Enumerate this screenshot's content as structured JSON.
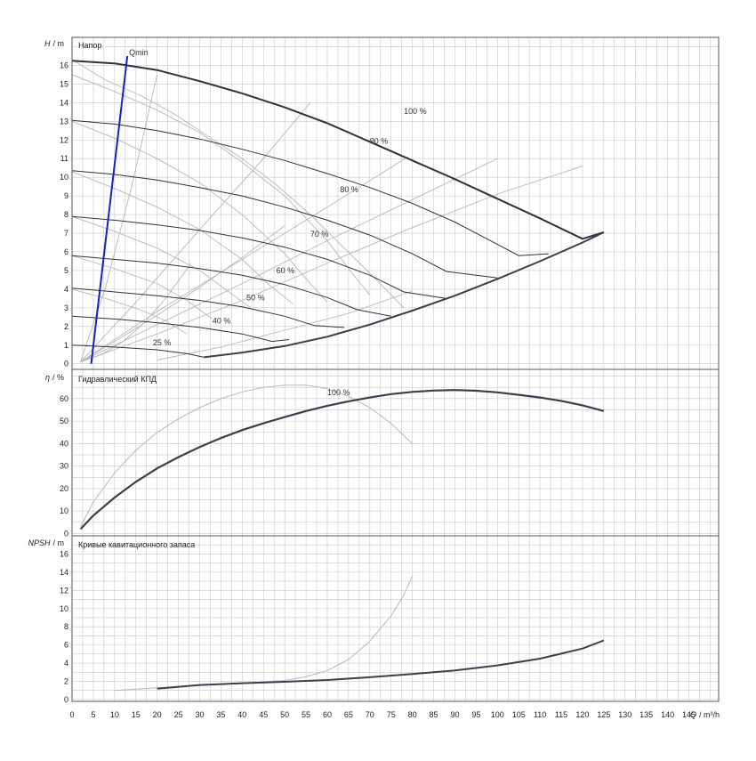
{
  "colors": {
    "grid": "#c8c8c8",
    "frame": "#555555",
    "main_curve": "#3a3f4e",
    "speed_curve": "#2e3240",
    "light_curve": "#b8b8b8",
    "qmin_line": "#1022c8"
  },
  "chart_data": [
    {
      "type": "line",
      "panel": "head",
      "title": "Напор",
      "ylabel_italic": "H",
      "ylabel_unit": "/ m",
      "xlim": [
        0,
        152
      ],
      "ylim": [
        -0.3,
        17.5
      ],
      "yticks": [
        0,
        1,
        2,
        3,
        4,
        5,
        6,
        7,
        8,
        9,
        10,
        11,
        12,
        13,
        14,
        15,
        16
      ],
      "qmin_label": "Qmin",
      "qmin_line": [
        [
          4.5,
          0
        ],
        [
          13,
          16.5
        ]
      ],
      "speed_curves": [
        {
          "label": "100 %",
          "label_at": [
            78,
            13.4
          ],
          "points": [
            [
              0,
              16.25
            ],
            [
              10,
              16.1
            ],
            [
              20,
              15.75
            ],
            [
              30,
              15.15
            ],
            [
              40,
              14.5
            ],
            [
              50,
              13.75
            ],
            [
              60,
              12.9
            ],
            [
              70,
              11.9
            ],
            [
              80,
              10.9
            ],
            [
              90,
              9.9
            ],
            [
              100,
              8.85
            ],
            [
              110,
              7.8
            ],
            [
              120,
              6.7
            ],
            [
              125,
              7.05
            ]
          ]
        },
        {
          "label": "90 %",
          "label_at": [
            70,
            11.8
          ],
          "points": [
            [
              0,
              13.05
            ],
            [
              10,
              12.85
            ],
            [
              20,
              12.5
            ],
            [
              30,
              12.05
            ],
            [
              40,
              11.5
            ],
            [
              50,
              10.9
            ],
            [
              60,
              10.2
            ],
            [
              70,
              9.45
            ],
            [
              80,
              8.6
            ],
            [
              90,
              7.6
            ],
            [
              100,
              6.4
            ],
            [
              105,
              5.8
            ],
            [
              112,
              5.9
            ]
          ]
        },
        {
          "label": "80 %",
          "label_at": [
            63,
            9.2
          ],
          "points": [
            [
              0,
              10.35
            ],
            [
              10,
              10.15
            ],
            [
              20,
              9.85
            ],
            [
              30,
              9.45
            ],
            [
              40,
              9.0
            ],
            [
              50,
              8.4
            ],
            [
              60,
              7.7
            ],
            [
              70,
              6.9
            ],
            [
              80,
              5.9
            ],
            [
              88,
              4.95
            ],
            [
              100,
              4.6
            ]
          ]
        },
        {
          "label": "70 %",
          "label_at": [
            56,
            6.8
          ],
          "points": [
            [
              0,
              7.9
            ],
            [
              10,
              7.7
            ],
            [
              20,
              7.45
            ],
            [
              30,
              7.15
            ],
            [
              40,
              6.75
            ],
            [
              50,
              6.25
            ],
            [
              60,
              5.6
            ],
            [
              70,
              4.75
            ],
            [
              78,
              3.85
            ],
            [
              88,
              3.5
            ]
          ]
        },
        {
          "label": "60 %",
          "label_at": [
            48,
            4.85
          ],
          "points": [
            [
              0,
              5.8
            ],
            [
              10,
              5.6
            ],
            [
              20,
              5.4
            ],
            [
              30,
              5.1
            ],
            [
              40,
              4.75
            ],
            [
              50,
              4.25
            ],
            [
              60,
              3.55
            ],
            [
              67,
              2.9
            ],
            [
              75,
              2.55
            ]
          ]
        },
        {
          "label": "50 %",
          "label_at": [
            41,
            3.4
          ],
          "points": [
            [
              0,
              4.05
            ],
            [
              10,
              3.85
            ],
            [
              20,
              3.65
            ],
            [
              30,
              3.4
            ],
            [
              40,
              3.05
            ],
            [
              50,
              2.55
            ],
            [
              57,
              2.05
            ],
            [
              64,
              1.95
            ]
          ]
        },
        {
          "label": "40 %",
          "label_at": [
            33,
            2.15
          ],
          "points": [
            [
              0,
              2.55
            ],
            [
              10,
              2.4
            ],
            [
              20,
              2.2
            ],
            [
              30,
              1.95
            ],
            [
              40,
              1.6
            ],
            [
              47,
              1.2
            ],
            [
              51,
              1.3
            ]
          ]
        },
        {
          "label": "25 %",
          "label_at": [
            19,
            1.0
          ],
          "points": [
            [
              0,
              1.0
            ],
            [
              10,
              0.9
            ],
            [
              20,
              0.75
            ],
            [
              27,
              0.55
            ],
            [
              31,
              0.35
            ]
          ]
        }
      ],
      "limit_curve": [
        [
          31,
          0.35
        ],
        [
          40,
          0.6
        ],
        [
          50,
          0.95
        ],
        [
          60,
          1.45
        ],
        [
          70,
          2.1
        ],
        [
          80,
          2.85
        ],
        [
          90,
          3.65
        ],
        [
          100,
          4.55
        ],
        [
          110,
          5.5
        ],
        [
          120,
          6.5
        ],
        [
          125,
          7.05
        ]
      ],
      "light_curves": [
        [
          [
            0,
            16.3
          ],
          [
            8,
            15.2
          ],
          [
            16,
            14.4
          ],
          [
            24,
            13.4
          ],
          [
            32,
            12.2
          ],
          [
            40,
            11.0
          ],
          [
            48,
            9.6
          ],
          [
            56,
            8.0
          ],
          [
            64,
            6.2
          ],
          [
            72,
            4.4
          ],
          [
            78,
            3.0
          ]
        ],
        [
          [
            0,
            15.5
          ],
          [
            10,
            14.6
          ],
          [
            20,
            13.6
          ],
          [
            30,
            12.4
          ],
          [
            40,
            10.8
          ],
          [
            50,
            9.0
          ],
          [
            60,
            6.6
          ],
          [
            66,
            4.8
          ],
          [
            70,
            3.7
          ]
        ],
        [
          [
            0,
            13.0
          ],
          [
            10,
            12.1
          ],
          [
            20,
            11.0
          ],
          [
            30,
            9.7
          ],
          [
            40,
            8.0
          ],
          [
            50,
            5.9
          ],
          [
            56,
            4.3
          ],
          [
            60,
            3.3
          ]
        ],
        [
          [
            0,
            10.3
          ],
          [
            10,
            9.4
          ],
          [
            20,
            8.4
          ],
          [
            30,
            7.2
          ],
          [
            40,
            5.6
          ],
          [
            46,
            4.3
          ],
          [
            52,
            3.2
          ]
        ],
        [
          [
            0,
            7.9
          ],
          [
            10,
            7.1
          ],
          [
            20,
            6.2
          ],
          [
            30,
            5.0
          ],
          [
            36,
            4.0
          ],
          [
            42,
            3.0
          ]
        ],
        [
          [
            0,
            5.8
          ],
          [
            10,
            5.1
          ],
          [
            20,
            4.3
          ],
          [
            27,
            3.4
          ],
          [
            33,
            2.4
          ]
        ],
        [
          [
            0,
            4.0
          ],
          [
            8,
            3.5
          ],
          [
            16,
            2.9
          ],
          [
            22,
            2.3
          ],
          [
            27,
            1.6
          ]
        ],
        [
          [
            2,
            0.1
          ],
          [
            20,
            1.6
          ],
          [
            40,
            3.4
          ],
          [
            60,
            5.4
          ],
          [
            80,
            7.3
          ],
          [
            100,
            9.1
          ],
          [
            120,
            10.6
          ]
        ],
        [
          [
            2,
            0.1
          ],
          [
            20,
            2.1
          ],
          [
            40,
            4.3
          ],
          [
            60,
            6.6
          ],
          [
            80,
            8.8
          ],
          [
            100,
            11.0
          ]
        ],
        [
          [
            2,
            0.1
          ],
          [
            20,
            2.8
          ],
          [
            40,
            5.6
          ],
          [
            60,
            8.4
          ],
          [
            79,
            11.1
          ]
        ],
        [
          [
            2,
            0.1
          ],
          [
            15,
            3.3
          ],
          [
            30,
            7.2
          ],
          [
            45,
            11.0
          ],
          [
            56,
            14.0
          ]
        ],
        [
          [
            2,
            0.1
          ],
          [
            8,
            4.2
          ],
          [
            14,
            9.5
          ],
          [
            20,
            15.5
          ]
        ],
        [
          [
            20,
            0.2
          ],
          [
            35,
            0.9
          ],
          [
            50,
            1.8
          ],
          [
            65,
            2.7
          ],
          [
            80,
            3.9
          ]
        ],
        [
          [
            2,
            0.1
          ],
          [
            7,
            0.5
          ],
          [
            12,
            1.2
          ],
          [
            17,
            2.2
          ],
          [
            22,
            3.5
          ],
          [
            28,
            5.4
          ]
        ],
        [
          [
            2,
            0.1
          ],
          [
            10,
            1.2
          ],
          [
            20,
            2.6
          ],
          [
            30,
            4.1
          ],
          [
            40,
            5.7
          ],
          [
            50,
            7.4
          ]
        ]
      ]
    },
    {
      "type": "line",
      "panel": "efficiency",
      "title": "Гидравлический КПД",
      "ylabel_italic": "η",
      "ylabel_unit": "/ %",
      "xlim": [
        0,
        152
      ],
      "ylim": [
        -1,
        73
      ],
      "yticks": [
        0,
        10,
        20,
        30,
        40,
        50,
        60
      ],
      "series": [
        {
          "label": "100 %",
          "label_at": [
            60,
            61.5
          ],
          "points": [
            [
              2,
              2
            ],
            [
              5,
              8
            ],
            [
              10,
              16
            ],
            [
              15,
              23
            ],
            [
              20,
              29
            ],
            [
              25,
              34
            ],
            [
              30,
              38.5
            ],
            [
              35,
              42.5
            ],
            [
              40,
              46
            ],
            [
              45,
              49
            ],
            [
              50,
              51.8
            ],
            [
              55,
              54.5
            ],
            [
              60,
              56.8
            ],
            [
              65,
              58.8
            ],
            [
              70,
              60.5
            ],
            [
              75,
              62
            ],
            [
              80,
              63
            ],
            [
              85,
              63.6
            ],
            [
              90,
              63.8
            ],
            [
              95,
              63.5
            ],
            [
              100,
              62.8
            ],
            [
              105,
              61.7
            ],
            [
              110,
              60.5
            ],
            [
              115,
              59
            ],
            [
              120,
              57
            ],
            [
              125,
              54.5
            ]
          ]
        }
      ],
      "light_curve": [
        [
          2,
          3
        ],
        [
          5,
          14
        ],
        [
          10,
          27
        ],
        [
          15,
          37
        ],
        [
          20,
          45
        ],
        [
          25,
          51
        ],
        [
          30,
          56
        ],
        [
          35,
          60
        ],
        [
          40,
          63
        ],
        [
          45,
          65
        ],
        [
          50,
          66
        ],
        [
          55,
          66
        ],
        [
          60,
          64.5
        ],
        [
          65,
          61
        ],
        [
          70,
          56
        ],
        [
          75,
          49
        ],
        [
          80,
          40
        ]
      ]
    },
    {
      "type": "line",
      "panel": "npsh",
      "title": "Кривые кавитационного запаса",
      "ylabel_italic": "NPSH",
      "ylabel_unit": "/ m",
      "xlabel_italic": "Q",
      "xlabel_unit": "/ m³/h",
      "xlim": [
        0,
        152
      ],
      "ylim": [
        -0.2,
        18
      ],
      "yticks": [
        0,
        2,
        4,
        6,
        8,
        10,
        12,
        14,
        16
      ],
      "xticks": [
        0,
        5,
        10,
        15,
        20,
        25,
        30,
        35,
        40,
        45,
        50,
        55,
        60,
        65,
        70,
        75,
        80,
        85,
        90,
        95,
        100,
        105,
        110,
        115,
        120,
        125,
        130,
        135,
        140,
        145
      ],
      "series": [
        {
          "points": [
            [
              20,
              1.2
            ],
            [
              30,
              1.6
            ],
            [
              40,
              1.8
            ],
            [
              50,
              1.95
            ],
            [
              60,
              2.15
            ],
            [
              70,
              2.45
            ],
            [
              80,
              2.8
            ],
            [
              90,
              3.2
            ],
            [
              100,
              3.75
            ],
            [
              110,
              4.5
            ],
            [
              120,
              5.6
            ],
            [
              125,
              6.5
            ]
          ]
        }
      ],
      "light_curve": [
        [
          10,
          1.0
        ],
        [
          20,
          1.3
        ],
        [
          30,
          1.6
        ],
        [
          40,
          1.8
        ],
        [
          50,
          2.1
        ],
        [
          55,
          2.5
        ],
        [
          60,
          3.2
        ],
        [
          65,
          4.4
        ],
        [
          70,
          6.4
        ],
        [
          75,
          9.2
        ],
        [
          78,
          11.5
        ],
        [
          80,
          13.6
        ]
      ]
    }
  ]
}
